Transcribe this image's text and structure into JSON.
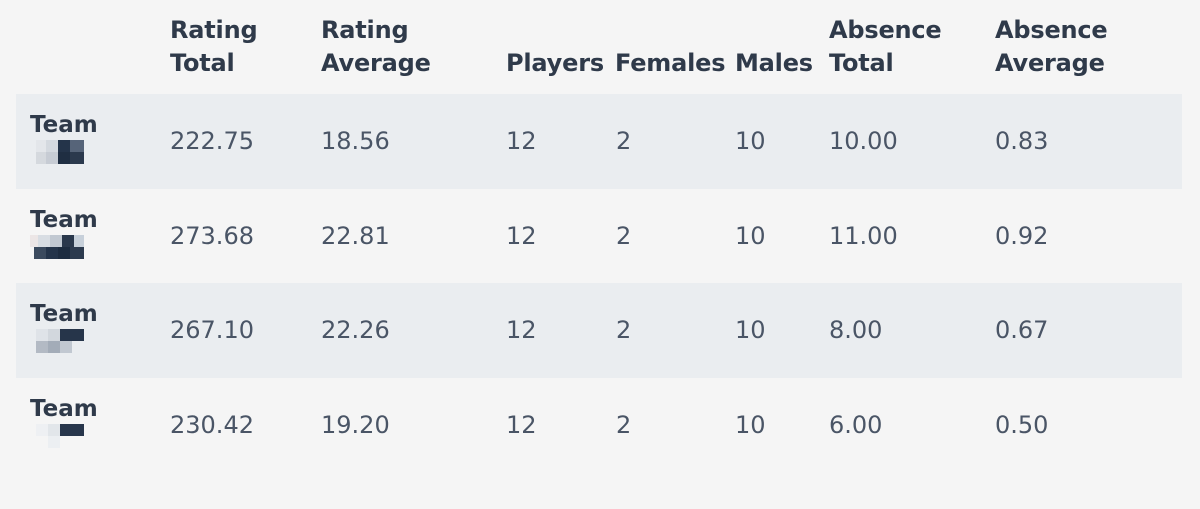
{
  "table": {
    "headers": {
      "rating_total": [
        "Rating",
        "Total"
      ],
      "rating_average": [
        "Rating",
        "Average"
      ],
      "players": "Players",
      "females": "Females",
      "males": "Males",
      "absence_total": [
        "Absence",
        "Total"
      ],
      "absence_average": [
        "Absence",
        "Average"
      ]
    },
    "rows": [
      {
        "team": "Team",
        "rating_total": "222.75",
        "rating_average": "18.56",
        "players": "12",
        "females": "2",
        "males": "10",
        "absence_total": "10.00",
        "absence_average": "0.83"
      },
      {
        "team": "Team",
        "rating_total": "273.68",
        "rating_average": "22.81",
        "players": "12",
        "females": "2",
        "males": "10",
        "absence_total": "11.00",
        "absence_average": "0.92"
      },
      {
        "team": "Team",
        "rating_total": "267.10",
        "rating_average": "22.26",
        "players": "12",
        "females": "2",
        "males": "10",
        "absence_total": "8.00",
        "absence_average": "0.67"
      },
      {
        "team": "Team",
        "rating_total": "230.42",
        "rating_average": "19.20",
        "players": "12",
        "females": "2",
        "males": "10",
        "absence_total": "6.00",
        "absence_average": "0.50"
      }
    ]
  },
  "colors": {
    "background": "#f5f5f5",
    "stripe": "#eaedf0",
    "heading": "#2f3a4a",
    "cell_text": "#4a5566"
  }
}
